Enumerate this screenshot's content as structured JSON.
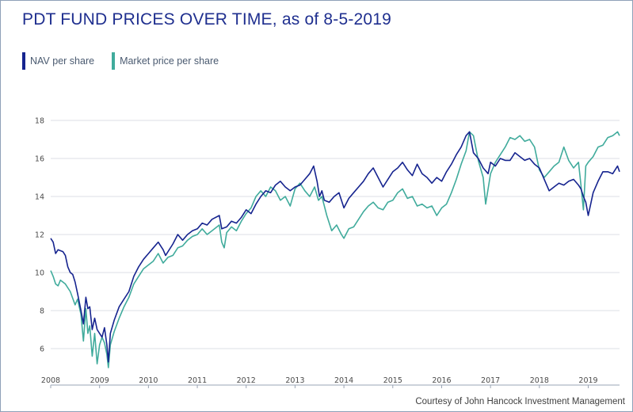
{
  "title": "PDT FUND PRICES OVER TIME, as of 8-5-2019",
  "credit": "Courtesy of John Hancock Investment Management",
  "colors": {
    "nav": "#16248f",
    "market": "#40ab9c",
    "title": "#1f2f8f",
    "grid": "#dcdfe4"
  },
  "chart_data": {
    "type": "line",
    "x_type": "year",
    "xlim": [
      2008.0,
      2019.64
    ],
    "ylim": [
      4.5,
      18.5
    ],
    "x_ticks": [
      "2008",
      "2009",
      "2010",
      "2011",
      "2012",
      "2013",
      "2014",
      "2015",
      "2016",
      "2017",
      "2018",
      "2019"
    ],
    "y_ticks": [
      "6",
      "8",
      "10",
      "12",
      "14",
      "16",
      "18"
    ],
    "grid": "horizontal",
    "legend_position": "top-left",
    "series": [
      {
        "name": "NAV per share",
        "color": "#16248f",
        "x": [
          2008.0,
          2008.05,
          2008.1,
          2008.15,
          2008.25,
          2008.3,
          2008.35,
          2008.4,
          2008.45,
          2008.5,
          2008.55,
          2008.62,
          2008.67,
          2008.72,
          2008.76,
          2008.8,
          2008.85,
          2008.9,
          2008.95,
          2009.0,
          2009.05,
          2009.1,
          2009.15,
          2009.18,
          2009.22,
          2009.3,
          2009.4,
          2009.5,
          2009.6,
          2009.7,
          2009.8,
          2009.9,
          2010.0,
          2010.1,
          2010.2,
          2010.3,
          2010.35,
          2010.5,
          2010.6,
          2010.7,
          2010.8,
          2010.9,
          2011.0,
          2011.1,
          2011.2,
          2011.3,
          2011.45,
          2011.5,
          2011.6,
          2011.7,
          2011.8,
          2011.9,
          2012.0,
          2012.1,
          2012.2,
          2012.3,
          2012.4,
          2012.5,
          2012.6,
          2012.7,
          2012.8,
          2012.9,
          2013.0,
          2013.1,
          2013.2,
          2013.3,
          2013.38,
          2013.45,
          2013.5,
          2013.55,
          2013.6,
          2013.7,
          2013.8,
          2013.9,
          2014.0,
          2014.1,
          2014.2,
          2014.3,
          2014.4,
          2014.5,
          2014.6,
          2014.7,
          2014.8,
          2014.9,
          2015.0,
          2015.1,
          2015.2,
          2015.3,
          2015.4,
          2015.5,
          2015.6,
          2015.7,
          2015.8,
          2015.9,
          2016.0,
          2016.1,
          2016.2,
          2016.3,
          2016.4,
          2016.5,
          2016.57,
          2016.65,
          2016.75,
          2016.85,
          2016.95,
          2017.0,
          2017.1,
          2017.2,
          2017.3,
          2017.4,
          2017.5,
          2017.6,
          2017.7,
          2017.8,
          2017.9,
          2018.0,
          2018.05,
          2018.1,
          2018.2,
          2018.3,
          2018.4,
          2018.5,
          2018.6,
          2018.7,
          2018.8,
          2018.85,
          2018.9,
          2018.95,
          2019.0,
          2019.1,
          2019.2,
          2019.3,
          2019.4,
          2019.5,
          2019.55,
          2019.6,
          2019.64
        ],
        "y": [
          11.8,
          11.6,
          11.0,
          11.2,
          11.1,
          10.9,
          10.3,
          10.0,
          9.9,
          9.5,
          8.9,
          8.0,
          7.3,
          8.7,
          8.1,
          8.2,
          7.0,
          7.6,
          7.0,
          6.8,
          6.6,
          7.1,
          6.2,
          5.3,
          6.8,
          7.5,
          8.2,
          8.6,
          9.0,
          9.8,
          10.3,
          10.7,
          11.0,
          11.3,
          11.6,
          11.2,
          10.9,
          11.5,
          12.0,
          11.7,
          12.0,
          12.2,
          12.3,
          12.6,
          12.5,
          12.8,
          13.0,
          12.3,
          12.4,
          12.7,
          12.6,
          12.9,
          13.3,
          13.1,
          13.6,
          14.0,
          14.3,
          14.2,
          14.6,
          14.8,
          14.5,
          14.3,
          14.5,
          14.6,
          14.9,
          15.2,
          15.6,
          14.8,
          14.0,
          14.3,
          13.8,
          13.7,
          14.0,
          14.2,
          13.4,
          13.9,
          14.2,
          14.5,
          14.8,
          15.2,
          15.5,
          15.0,
          14.5,
          14.9,
          15.3,
          15.5,
          15.8,
          15.4,
          15.1,
          15.7,
          15.2,
          15.0,
          14.7,
          15.0,
          14.8,
          15.3,
          15.7,
          16.2,
          16.6,
          17.2,
          17.4,
          16.3,
          16.0,
          15.5,
          15.2,
          15.8,
          15.6,
          16.0,
          15.9,
          15.9,
          16.3,
          16.1,
          15.9,
          16.0,
          15.7,
          15.5,
          15.2,
          14.9,
          14.3,
          14.5,
          14.7,
          14.6,
          14.8,
          14.9,
          14.6,
          14.4,
          14.0,
          13.7,
          13.0,
          14.2,
          14.8,
          15.3,
          15.3,
          15.2,
          15.4,
          15.6,
          15.3
        ]
      },
      {
        "name": "Market price per share",
        "color": "#40ab9c",
        "x": [
          2008.0,
          2008.05,
          2008.1,
          2008.15,
          2008.2,
          2008.3,
          2008.4,
          2008.5,
          2008.55,
          2008.62,
          2008.67,
          2008.72,
          2008.76,
          2008.8,
          2008.85,
          2008.9,
          2008.95,
          2009.0,
          2009.05,
          2009.1,
          2009.15,
          2009.18,
          2009.22,
          2009.3,
          2009.4,
          2009.5,
          2009.6,
          2009.7,
          2009.8,
          2009.9,
          2010.0,
          2010.1,
          2010.2,
          2010.3,
          2010.4,
          2010.5,
          2010.6,
          2010.7,
          2010.8,
          2010.9,
          2011.0,
          2011.1,
          2011.2,
          2011.3,
          2011.45,
          2011.5,
          2011.55,
          2011.6,
          2011.7,
          2011.8,
          2011.9,
          2012.0,
          2012.1,
          2012.2,
          2012.3,
          2012.4,
          2012.5,
          2012.6,
          2012.7,
          2012.8,
          2012.9,
          2013.0,
          2013.1,
          2013.2,
          2013.3,
          2013.4,
          2013.48,
          2013.55,
          2013.65,
          2013.75,
          2013.85,
          2013.95,
          2014.0,
          2014.1,
          2014.2,
          2014.3,
          2014.4,
          2014.5,
          2014.6,
          2014.7,
          2014.8,
          2014.9,
          2015.0,
          2015.1,
          2015.2,
          2015.3,
          2015.4,
          2015.5,
          2015.6,
          2015.7,
          2015.8,
          2015.9,
          2016.0,
          2016.1,
          2016.2,
          2016.3,
          2016.4,
          2016.5,
          2016.57,
          2016.65,
          2016.75,
          2016.85,
          2016.9,
          2017.0,
          2017.1,
          2017.2,
          2017.3,
          2017.4,
          2017.5,
          2017.6,
          2017.7,
          2017.8,
          2017.9,
          2018.0,
          2018.1,
          2018.2,
          2018.3,
          2018.4,
          2018.5,
          2018.6,
          2018.7,
          2018.8,
          2018.85,
          2018.9,
          2018.95,
          2019.0,
          2019.1,
          2019.2,
          2019.3,
          2019.4,
          2019.5,
          2019.6,
          2019.64
        ],
        "y": [
          10.1,
          9.8,
          9.4,
          9.3,
          9.6,
          9.4,
          9.0,
          8.3,
          8.6,
          7.8,
          6.4,
          8.1,
          6.8,
          7.2,
          5.6,
          6.8,
          5.2,
          6.2,
          6.6,
          6.3,
          5.7,
          5.0,
          6.2,
          6.9,
          7.6,
          8.2,
          8.7,
          9.4,
          9.8,
          10.2,
          10.4,
          10.6,
          11.0,
          10.5,
          10.8,
          10.9,
          11.3,
          11.4,
          11.7,
          11.9,
          12.0,
          12.3,
          12.0,
          12.2,
          12.5,
          11.6,
          11.3,
          12.1,
          12.4,
          12.2,
          12.7,
          13.1,
          13.4,
          14.0,
          14.3,
          14.0,
          14.5,
          14.3,
          13.8,
          14.0,
          13.5,
          14.4,
          14.7,
          14.3,
          14.0,
          14.5,
          13.8,
          14.0,
          13.0,
          12.2,
          12.5,
          12.0,
          11.8,
          12.3,
          12.4,
          12.8,
          13.2,
          13.5,
          13.7,
          13.4,
          13.3,
          13.7,
          13.8,
          14.2,
          14.4,
          13.9,
          14.0,
          13.5,
          13.6,
          13.4,
          13.5,
          13.0,
          13.4,
          13.6,
          14.2,
          14.9,
          15.7,
          16.4,
          17.4,
          17.2,
          15.9,
          15.0,
          13.6,
          15.2,
          15.8,
          16.2,
          16.6,
          17.1,
          17.0,
          17.2,
          16.9,
          17.0,
          16.6,
          15.4,
          15.0,
          15.3,
          15.6,
          15.8,
          16.6,
          15.9,
          15.5,
          15.8,
          14.6,
          13.3,
          15.6,
          15.8,
          16.1,
          16.6,
          16.7,
          17.1,
          17.2,
          17.4,
          17.2
        ]
      }
    ]
  }
}
